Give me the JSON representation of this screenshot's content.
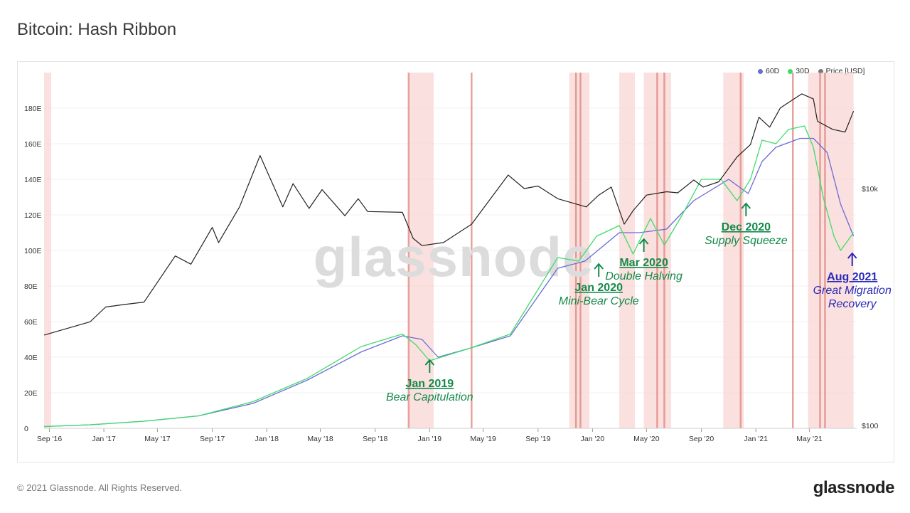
{
  "page": {
    "title": "Bitcoin: Hash Ribbon",
    "footer": "© 2021 Glassnode. All Rights Reserved.",
    "brand": "glassnode",
    "watermark": "glassnode"
  },
  "legend": [
    {
      "label": "60D",
      "color": "#6b6bd6"
    },
    {
      "label": "30D",
      "color": "#3ddc6a"
    },
    {
      "label": "Price [USD]",
      "color": "#777777"
    }
  ],
  "chart_data": {
    "type": "line",
    "title": "Bitcoin: Hash Ribbon",
    "x_ticks": [
      "Sep '16",
      "Jan '17",
      "May '17",
      "Sep '17",
      "Jan '18",
      "May '18",
      "Sep '18",
      "Jan '19",
      "May '19",
      "Sep '19",
      "Jan '20",
      "May '20",
      "Sep '20",
      "Jan '21",
      "May '21"
    ],
    "y_left_ticks": [
      "0",
      "20E",
      "40E",
      "60E",
      "80E",
      "100E",
      "120E",
      "140E",
      "160E",
      "180E"
    ],
    "y_left_range": [
      0,
      200
    ],
    "y_right_ticks": [
      "$100",
      "$10k"
    ],
    "y_right_scale": "log",
    "grid": true,
    "legend_position": "top-right",
    "series": [
      {
        "name": "60D",
        "color": "#6b6bd6",
        "x": [
          "2016-08-20",
          "2016-12-01",
          "2017-04-01",
          "2017-08-01",
          "2017-12-01",
          "2018-04-01",
          "2018-08-01",
          "2018-11-01",
          "2018-12-15",
          "2019-01-20",
          "2019-04-01",
          "2019-07-01",
          "2019-10-15",
          "2019-12-15",
          "2020-03-01",
          "2020-04-15",
          "2020-06-15",
          "2020-08-15",
          "2020-11-01",
          "2020-12-15",
          "2021-01-15",
          "2021-02-15",
          "2021-04-10",
          "2021-05-10",
          "2021-06-10",
          "2021-07-10",
          "2021-08-08"
        ],
        "values": [
          1,
          2,
          4,
          7,
          14,
          27,
          43,
          52,
          50,
          40,
          45,
          52,
          90,
          94,
          110,
          110,
          112,
          128,
          140,
          132,
          150,
          158,
          163,
          163,
          155,
          126,
          108
        ]
      },
      {
        "name": "30D",
        "color": "#3ddc6a",
        "x": [
          "2016-08-20",
          "2016-12-01",
          "2017-04-01",
          "2017-08-01",
          "2017-12-01",
          "2018-04-01",
          "2018-08-01",
          "2018-11-01",
          "2018-12-01",
          "2019-01-01",
          "2019-04-01",
          "2019-07-01",
          "2019-10-15",
          "2019-12-01",
          "2020-01-10",
          "2020-03-01",
          "2020-04-01",
          "2020-05-10",
          "2020-06-10",
          "2020-07-20",
          "2020-09-01",
          "2020-10-15",
          "2020-11-20",
          "2020-12-20",
          "2021-01-15",
          "2021-02-15",
          "2021-03-15",
          "2021-04-20",
          "2021-05-10",
          "2021-06-01",
          "2021-06-25",
          "2021-07-10",
          "2021-08-08"
        ],
        "values": [
          1,
          2,
          4,
          7,
          15,
          28,
          46,
          53,
          47,
          38,
          45,
          53,
          96,
          94,
          108,
          114,
          98,
          118,
          103,
          120,
          140,
          140,
          128,
          140,
          162,
          160,
          168,
          170,
          158,
          130,
          108,
          100,
          110
        ]
      },
      {
        "name": "Price [USD]",
        "color": "#222222",
        "x": [
          "2016-08-20",
          "2016-12-01",
          "2017-01-05",
          "2017-02-15",
          "2017-04-01",
          "2017-06-10",
          "2017-07-15",
          "2017-09-01",
          "2017-09-15",
          "2017-11-01",
          "2017-12-17",
          "2018-02-06",
          "2018-03-01",
          "2018-04-06",
          "2018-05-05",
          "2018-06-25",
          "2018-07-25",
          "2018-08-15",
          "2018-11-01",
          "2018-11-25",
          "2018-12-15",
          "2019-02-01",
          "2019-04-05",
          "2019-06-26",
          "2019-08-01",
          "2019-09-01",
          "2019-10-15",
          "2019-12-18",
          "2020-01-15",
          "2020-02-12",
          "2020-03-12",
          "2020-04-01",
          "2020-05-01",
          "2020-06-15",
          "2020-07-10",
          "2020-08-15",
          "2020-09-05",
          "2020-10-10",
          "2020-11-20",
          "2020-12-20",
          "2021-01-08",
          "2021-02-01",
          "2021-02-25",
          "2021-04-14",
          "2021-05-10",
          "2021-05-19",
          "2021-06-22",
          "2021-07-20",
          "2021-08-08"
        ],
        "values": [
          580,
          750,
          1000,
          1050,
          1100,
          2700,
          2300,
          4700,
          3500,
          7000,
          19000,
          7000,
          11000,
          6800,
          9800,
          5900,
          8200,
          6400,
          6300,
          3800,
          3300,
          3500,
          5000,
          13000,
          10000,
          10500,
          8200,
          7000,
          8800,
          10300,
          5000,
          6500,
          8800,
          9400,
          9200,
          11800,
          10300,
          11400,
          18500,
          23500,
          40000,
          33000,
          48000,
          63000,
          57000,
          37000,
          31600,
          30000,
          45000
        ]
      }
    ],
    "bands": [
      {
        "from": "2016-08-20",
        "to": "2016-09-05"
      },
      {
        "from": "2018-11-15",
        "to": "2019-01-10"
      },
      {
        "from": "2019-11-10",
        "to": "2019-12-25"
      },
      {
        "from": "2020-03-01",
        "to": "2020-04-05"
      },
      {
        "from": "2020-04-25",
        "to": "2020-06-25"
      },
      {
        "from": "2020-10-20",
        "to": "2020-12-05"
      },
      {
        "from": "2021-04-28",
        "to": "2021-08-08"
      }
    ],
    "lines": [
      "2018-11-15",
      "2019-04-05",
      "2019-11-25",
      "2019-12-05",
      "2020-05-25",
      "2020-06-10",
      "2020-11-28",
      "2021-03-25",
      "2021-05-25",
      "2021-06-05"
    ],
    "annotations": [
      {
        "date": "Jan 2019",
        "label": "Bear Capitulation",
        "color": "#138a4a",
        "x": "2019-01-01",
        "y": 40
      },
      {
        "date": "Jan 2020",
        "label": "Mini-Bear Cycle",
        "color": "#138a4a",
        "x": "2020-01-15",
        "y": 94
      },
      {
        "date": "Mar 2020",
        "label": "Double Halving",
        "color": "#138a4a",
        "x": "2020-04-25",
        "y": 108
      },
      {
        "date": "Dec 2020",
        "label": "Supply Squeeze",
        "color": "#138a4a",
        "x": "2020-12-10",
        "y": 128
      },
      {
        "date": "Aug 2021",
        "label": "Great Migration\nRecovery",
        "color": "#2a2ab8",
        "x": "2021-08-05",
        "y": 100
      }
    ]
  }
}
